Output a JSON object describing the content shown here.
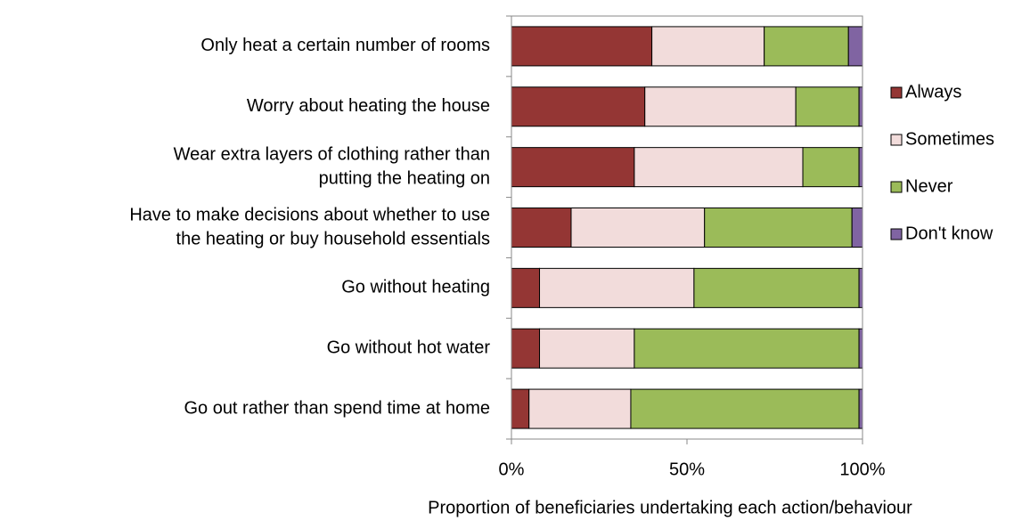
{
  "chart_data": {
    "type": "stacked-barh",
    "categories": [
      [
        "Only heat a certain number of rooms"
      ],
      [
        "Worry about heating the house"
      ],
      [
        "Wear extra layers of clothing rather than",
        "putting the heating on"
      ],
      [
        "Have to make decisions about whether to use",
        "the heating or buy household essentials"
      ],
      [
        "Go without heating"
      ],
      [
        "Go without hot water"
      ],
      [
        "Go out rather than spend time at home"
      ]
    ],
    "series": [
      {
        "name": "Always",
        "color": "#943634",
        "values": [
          40,
          38,
          35,
          17,
          8,
          8,
          5
        ]
      },
      {
        "name": "Sometimes",
        "color": "#f2dcdb",
        "values": [
          32,
          43,
          48,
          38,
          44,
          27,
          29
        ]
      },
      {
        "name": "Never",
        "color": "#9bbb59",
        "values": [
          24,
          18,
          16,
          42,
          47,
          64,
          65
        ]
      },
      {
        "name": "Don't know",
        "color": "#8064a2",
        "values": [
          4,
          1,
          1,
          3,
          1,
          1,
          1
        ]
      }
    ],
    "xlim": [
      0,
      100
    ],
    "xticks": [
      {
        "value": 0,
        "label": "0%"
      },
      {
        "value": 50,
        "label": "50%"
      },
      {
        "value": 100,
        "label": "100%"
      }
    ],
    "xlabel": "Proportion of beneficiaries undertaking each action/behaviour",
    "legend": "right"
  }
}
